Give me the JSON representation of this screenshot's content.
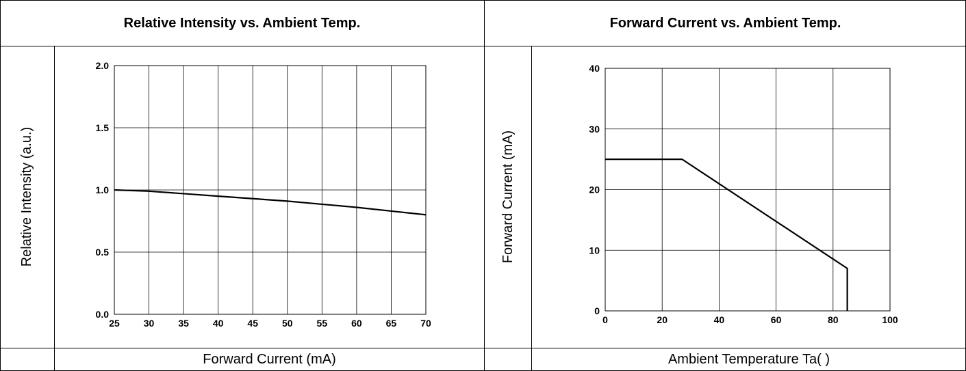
{
  "panels": [
    {
      "title": "Relative Intensity vs. Ambient Temp.",
      "xlabel": "Forward Current (mA)",
      "ylabel": "Relative Intensity (a.u.)"
    },
    {
      "title": "Forward Current vs. Ambient Temp.",
      "xlabel": "Ambient Temperature Ta(    )",
      "ylabel": "Forward Current (mA)"
    }
  ],
  "chart_data": [
    {
      "type": "line",
      "title": "Relative Intensity vs. Ambient Temp.",
      "xlabel": "Forward Current (mA)",
      "ylabel": "Relative Intensity (a.u.)",
      "xlim": [
        25,
        70
      ],
      "ylim": [
        0,
        2.0
      ],
      "xticks": [
        25,
        30,
        35,
        40,
        45,
        50,
        55,
        60,
        65,
        70
      ],
      "yticks": [
        "0.0",
        "0.5",
        "1.0",
        "1.5",
        "2.0"
      ],
      "grid": true,
      "series": [
        {
          "x": [
            25,
            30,
            35,
            40,
            45,
            50,
            55,
            60,
            65,
            70
          ],
          "y": [
            1.0,
            0.99,
            0.97,
            0.95,
            0.93,
            0.91,
            0.885,
            0.86,
            0.83,
            0.8
          ]
        }
      ]
    },
    {
      "type": "line",
      "title": "Forward Current vs. Ambient Temp.",
      "xlabel": "Ambient Temperature Ta(    )",
      "ylabel": "Forward Current (mA)",
      "xlim": [
        0,
        100
      ],
      "ylim": [
        0,
        40
      ],
      "xticks": [
        "0",
        "20",
        "40",
        "60",
        "80",
        "100"
      ],
      "yticks": [
        "0",
        "10",
        "20",
        "30",
        "40"
      ],
      "grid": true,
      "series": [
        {
          "x": [
            0,
            27,
            85,
            85
          ],
          "y": [
            25,
            25,
            7,
            0
          ]
        }
      ]
    }
  ]
}
